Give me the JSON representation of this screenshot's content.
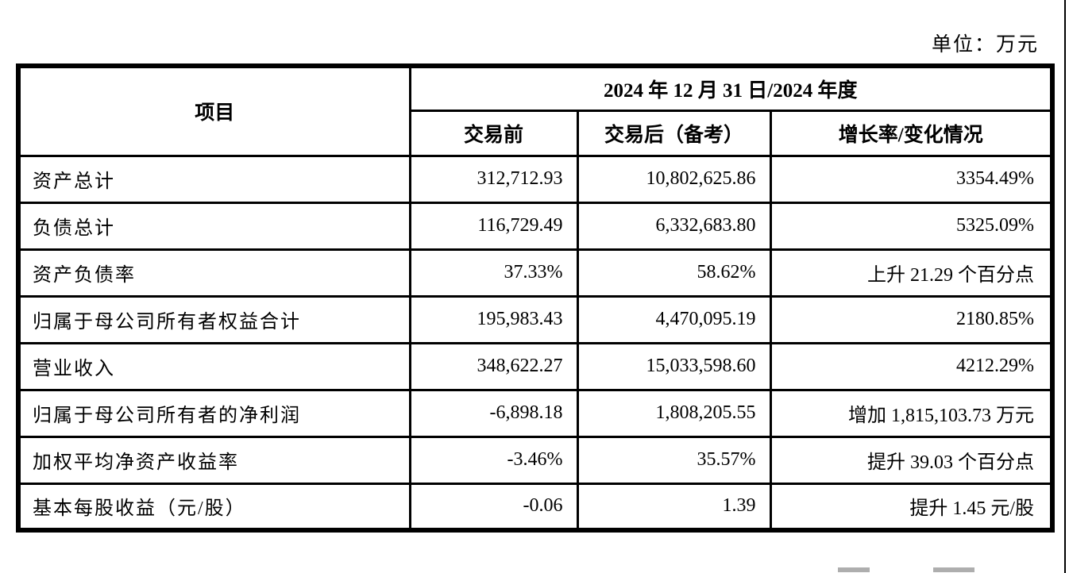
{
  "page": {
    "unit_label": "单位：万元"
  },
  "table": {
    "header": {
      "item": "项目",
      "period": "2024 年 12 月 31 日/2024 年度",
      "before": "交易前",
      "after": "交易后（备考）",
      "change": "增长率/变化情况"
    },
    "rows": [
      {
        "item": "资产总计",
        "before": "312,712.93",
        "after": "10,802,625.86",
        "change": "3354.49%"
      },
      {
        "item": "负债总计",
        "before": "116,729.49",
        "after": "6,332,683.80",
        "change": "5325.09%"
      },
      {
        "item": "资产负债率",
        "before": "37.33%",
        "after": "58.62%",
        "change": "上升 21.29 个百分点"
      },
      {
        "item": "归属于母公司所有者权益合计",
        "before": "195,983.43",
        "after": "4,470,095.19",
        "change": "2180.85%"
      },
      {
        "item": "营业收入",
        "before": "348,622.27",
        "after": "15,033,598.60",
        "change": "4212.29%"
      },
      {
        "item": "归属于母公司所有者的净利润",
        "before": "-6,898.18",
        "after": "1,808,205.55",
        "change": "增加 1,815,103.73 万元"
      },
      {
        "item": "加权平均净资产收益率",
        "before": "-3.46%",
        "after": "35.57%",
        "change": "提升 39.03 个百分点"
      },
      {
        "item": "基本每股收益（元/股）",
        "before": "-0.06",
        "after": "1.39",
        "change": "提升 1.45 元/股"
      }
    ]
  }
}
